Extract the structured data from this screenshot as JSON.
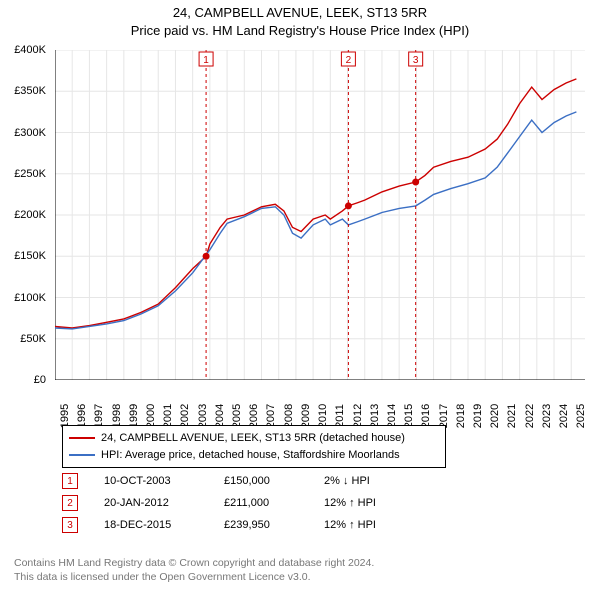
{
  "title": {
    "line1": "24, CAMPBELL AVENUE, LEEK, ST13 5RR",
    "line2": "Price paid vs. HM Land Registry's House Price Index (HPI)",
    "fontsize": 13,
    "color": "#000000"
  },
  "chart": {
    "type": "line",
    "background_color": "#ffffff",
    "grid_color": "#e6e6e6",
    "axis_color": "#000000",
    "x_range": [
      1995,
      2025.8
    ],
    "y_range": [
      0,
      400000
    ],
    "y_ticks": [
      0,
      50000,
      100000,
      150000,
      200000,
      250000,
      300000,
      350000,
      400000
    ],
    "y_tick_labels": [
      "£0",
      "£50K",
      "£100K",
      "£150K",
      "£200K",
      "£250K",
      "£300K",
      "£350K",
      "£400K"
    ],
    "x_ticks": [
      1995,
      1996,
      1997,
      1998,
      1999,
      2000,
      2001,
      2002,
      2003,
      2004,
      2005,
      2006,
      2007,
      2008,
      2009,
      2010,
      2011,
      2012,
      2013,
      2014,
      2015,
      2016,
      2017,
      2018,
      2019,
      2020,
      2021,
      2022,
      2023,
      2024,
      2025
    ],
    "label_fontsize": 11,
    "series": [
      {
        "name": "24, CAMPBELL AVENUE, LEEK, ST13 5RR (detached house)",
        "color": "#cc0000",
        "line_width": 1.4,
        "points": [
          [
            1995,
            65000
          ],
          [
            1996,
            63000
          ],
          [
            1997,
            66000
          ],
          [
            1998,
            70000
          ],
          [
            1999,
            74000
          ],
          [
            2000,
            82000
          ],
          [
            2001,
            92000
          ],
          [
            2002,
            112000
          ],
          [
            2003,
            135000
          ],
          [
            2003.78,
            150000
          ],
          [
            2004,
            165000
          ],
          [
            2004.6,
            185000
          ],
          [
            2005,
            195000
          ],
          [
            2006,
            200000
          ],
          [
            2007,
            210000
          ],
          [
            2007.8,
            213000
          ],
          [
            2008.3,
            205000
          ],
          [
            2008.8,
            185000
          ],
          [
            2009.3,
            180000
          ],
          [
            2010,
            195000
          ],
          [
            2010.7,
            200000
          ],
          [
            2011,
            195000
          ],
          [
            2011.7,
            205000
          ],
          [
            2012.05,
            211000
          ],
          [
            2012.6,
            215000
          ],
          [
            2013,
            218000
          ],
          [
            2014,
            228000
          ],
          [
            2015,
            235000
          ],
          [
            2015.96,
            239950
          ],
          [
            2016.5,
            248000
          ],
          [
            2017,
            258000
          ],
          [
            2018,
            265000
          ],
          [
            2019,
            270000
          ],
          [
            2020,
            280000
          ],
          [
            2020.7,
            292000
          ],
          [
            2021.3,
            310000
          ],
          [
            2022,
            335000
          ],
          [
            2022.7,
            355000
          ],
          [
            2023.3,
            340000
          ],
          [
            2024,
            352000
          ],
          [
            2024.7,
            360000
          ],
          [
            2025.3,
            365000
          ]
        ]
      },
      {
        "name": "HPI: Average price, detached house, Staffordshire Moorlands",
        "color": "#3b6fc4",
        "line_width": 1.4,
        "points": [
          [
            1995,
            63000
          ],
          [
            1996,
            62000
          ],
          [
            1997,
            65000
          ],
          [
            1998,
            68000
          ],
          [
            1999,
            72000
          ],
          [
            2000,
            80000
          ],
          [
            2001,
            90000
          ],
          [
            2002,
            108000
          ],
          [
            2003,
            130000
          ],
          [
            2004,
            158000
          ],
          [
            2004.6,
            178000
          ],
          [
            2005,
            190000
          ],
          [
            2006,
            198000
          ],
          [
            2007,
            208000
          ],
          [
            2007.8,
            210000
          ],
          [
            2008.3,
            200000
          ],
          [
            2008.8,
            178000
          ],
          [
            2009.3,
            172000
          ],
          [
            2010,
            188000
          ],
          [
            2010.7,
            195000
          ],
          [
            2011,
            188000
          ],
          [
            2011.7,
            195000
          ],
          [
            2012.05,
            188000
          ],
          [
            2012.6,
            192000
          ],
          [
            2013,
            195000
          ],
          [
            2014,
            203000
          ],
          [
            2015,
            208000
          ],
          [
            2015.96,
            211000
          ],
          [
            2016.5,
            218000
          ],
          [
            2017,
            225000
          ],
          [
            2018,
            232000
          ],
          [
            2019,
            238000
          ],
          [
            2020,
            245000
          ],
          [
            2020.7,
            258000
          ],
          [
            2021.3,
            275000
          ],
          [
            2022,
            295000
          ],
          [
            2022.7,
            315000
          ],
          [
            2023.3,
            300000
          ],
          [
            2024,
            312000
          ],
          [
            2024.7,
            320000
          ],
          [
            2025.3,
            325000
          ]
        ]
      }
    ],
    "sale_markers": [
      {
        "n": "1",
        "x": 2003.78,
        "y": 150000
      },
      {
        "n": "2",
        "x": 2012.05,
        "y": 211000
      },
      {
        "n": "3",
        "x": 2015.96,
        "y": 239950
      }
    ],
    "vline_color": "#cc0000",
    "vline_dash": "3,3",
    "point_radius": 3.5
  },
  "legend": {
    "items": [
      {
        "color": "#cc0000",
        "label": "24, CAMPBELL AVENUE, LEEK, ST13 5RR (detached house)"
      },
      {
        "color": "#3b6fc4",
        "label": "HPI: Average price, detached house, Staffordshire Moorlands"
      }
    ],
    "fontsize": 11
  },
  "sales": [
    {
      "n": "1",
      "date": "10-OCT-2003",
      "price": "£150,000",
      "delta": "2%",
      "arrow": "↓",
      "vs": "HPI"
    },
    {
      "n": "2",
      "date": "20-JAN-2012",
      "price": "£211,000",
      "delta": "12%",
      "arrow": "↑",
      "vs": "HPI"
    },
    {
      "n": "3",
      "date": "18-DEC-2015",
      "price": "£239,950",
      "delta": "12%",
      "arrow": "↑",
      "vs": "HPI"
    }
  ],
  "footer": {
    "line1": "Contains HM Land Registry data © Crown copyright and database right 2024.",
    "line2": "This data is licensed under the Open Government Licence v3.0.",
    "color": "#777777",
    "fontsize": 10.5
  }
}
